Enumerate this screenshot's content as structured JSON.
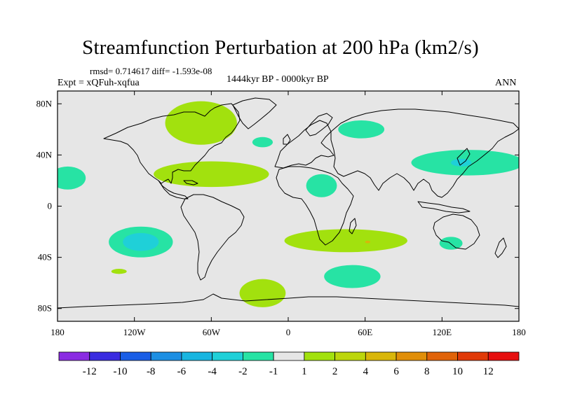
{
  "title": "Streamfunction Perturbation at 200 hPa (km2/s)",
  "stats_line": "rmsd= 0.714617 diff= -1.593e-08",
  "experiment": "Expt = xQFuh-xqfua",
  "period": "1444kyr BP - 0000kyr BP",
  "season": "ANN",
  "chart_data": {
    "type": "contour-map",
    "projection": "cylindrical equidistant",
    "lon_range": [
      -180,
      180
    ],
    "lat_range": [
      -90,
      90
    ],
    "x_ticks": [
      {
        "lon": -180,
        "label": "180"
      },
      {
        "lon": -120,
        "label": "120W"
      },
      {
        "lon": -60,
        "label": "60W"
      },
      {
        "lon": 0,
        "label": "0"
      },
      {
        "lon": 60,
        "label": "60E"
      },
      {
        "lon": 120,
        "label": "120E"
      },
      {
        "lon": 180,
        "label": "180"
      }
    ],
    "y_ticks": [
      {
        "lat": 80,
        "label": "80N"
      },
      {
        "lat": 40,
        "label": "40N"
      },
      {
        "lat": 0,
        "label": "0"
      },
      {
        "lat": -40,
        "label": "40S"
      },
      {
        "lat": -80,
        "label": "80S"
      }
    ],
    "colorbar": {
      "colors": [
        "#8a2be2",
        "#3a2ce0",
        "#1a5ee6",
        "#1d8fe3",
        "#18b5e0",
        "#1fd0d8",
        "#27e3a4",
        "#e6e6e6",
        "#a2e10e",
        "#bcd60c",
        "#d9b60a",
        "#e08e09",
        "#e06309",
        "#e03a08",
        "#e60f0f"
      ],
      "labels": [
        "-12",
        "-10",
        "-8",
        "-6",
        "-4",
        "-2",
        "-1",
        "1",
        "2",
        "4",
        "6",
        "8",
        "10",
        "12"
      ]
    },
    "regions": [
      {
        "name": "north-america-high",
        "lon": -68,
        "lat": 65,
        "rlon": 28,
        "rlat": 17,
        "level": "1 to 2",
        "color": "#a2e10e"
      },
      {
        "name": "gulf-atlantic-high",
        "lon": -60,
        "lat": 25,
        "rlon": 45,
        "rlat": 10,
        "level": "1 to 2",
        "color": "#a2e10e"
      },
      {
        "name": "south-atlantic-indian-high",
        "lon": 45,
        "lat": -27,
        "rlon": 48,
        "rlat": 9,
        "level": "1 to 2",
        "color": "#a2e10e"
      },
      {
        "name": "antarctic-high",
        "lon": -20,
        "lat": -68,
        "rlon": 18,
        "rlat": 11,
        "level": "1 to 2",
        "color": "#a2e10e"
      },
      {
        "name": "east-asia-low",
        "lon": 140,
        "lat": 34,
        "rlon": 44,
        "rlat": 10,
        "level": "-2 to -1",
        "color": "#27e3a4"
      },
      {
        "name": "east-asia-low-core",
        "lon": 135,
        "lat": 34,
        "rlon": 8,
        "rlat": 3,
        "level": "-4 to -2",
        "color": "#1fd0d8"
      },
      {
        "name": "south-pacific-low",
        "lon": -115,
        "lat": -28,
        "rlon": 25,
        "rlat": 12,
        "level": "-2 to -1",
        "color": "#27e3a4"
      },
      {
        "name": "south-pacific-low-core",
        "lon": -115,
        "lat": -28,
        "rlon": 14,
        "rlat": 7,
        "level": "-4 to -2",
        "color": "#1fd0d8"
      },
      {
        "name": "north-pacific-low",
        "lon": -172,
        "lat": 22,
        "rlon": 14,
        "rlat": 9,
        "level": "-2 to -1",
        "color": "#27e3a4"
      },
      {
        "name": "siberia-low",
        "lon": 57,
        "lat": 60,
        "rlon": 18,
        "rlat": 7,
        "level": "-2 to -1",
        "color": "#27e3a4"
      },
      {
        "name": "north-africa-low",
        "lon": 26,
        "lat": 16,
        "rlon": 12,
        "rlat": 9,
        "level": "-2 to -1",
        "color": "#27e3a4"
      },
      {
        "name": "southern-indian-low",
        "lon": 50,
        "lat": -55,
        "rlon": 22,
        "rlat": 9,
        "level": "-2 to -1",
        "color": "#27e3a4"
      },
      {
        "name": "australia-low",
        "lon": 127,
        "lat": -29,
        "rlon": 9,
        "rlat": 5,
        "level": "-2 to -1",
        "color": "#27e3a4"
      },
      {
        "name": "north-atlantic-low",
        "lon": -20,
        "lat": 50,
        "rlon": 8,
        "rlat": 4,
        "level": "-2 to -1",
        "color": "#27e3a4"
      },
      {
        "name": "south-pacific-small-high",
        "lon": -132,
        "lat": -51,
        "rlon": 6,
        "rlat": 2,
        "level": "1 to 2",
        "color": "#a2e10e"
      },
      {
        "name": "south-atlantic-core",
        "lon": 62,
        "lat": -28,
        "rlon": 2,
        "rlat": 1,
        "level": "4 to 6",
        "color": "#d9b60a"
      }
    ]
  }
}
